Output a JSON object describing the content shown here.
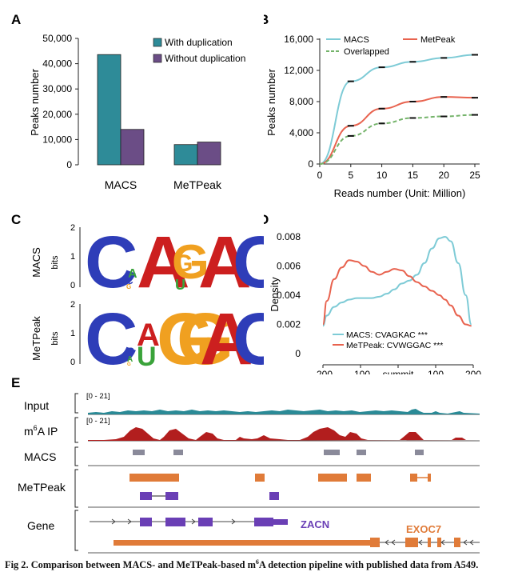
{
  "colors": {
    "macs": "#2e8b98",
    "without_dup": "#6b4d86",
    "line_macs": "#7ecbd6",
    "line_metpeak": "#e8634f",
    "line_overlapped": "#74b36a",
    "input_track": "#2a8a96",
    "ip_track": "#b21e1e",
    "macs_peak": "#8a8a9a",
    "metpeak_peak": "#e07b39",
    "metpeak_iso": "#6a3fb5",
    "zacn": "#6a3fb5",
    "exoc7": "#e07b39"
  },
  "panels": {
    "A": {
      "letter": "A"
    },
    "B": {
      "letter": "B"
    },
    "C": {
      "letter": "C"
    },
    "D": {
      "letter": "D"
    },
    "E": {
      "letter": "E"
    }
  },
  "chart_data": [
    {
      "panel": "A",
      "type": "bar",
      "ylabel": "Peaks number",
      "ylim": [
        0,
        50000
      ],
      "yticks": [
        "50,000",
        "40,000",
        "30,000",
        "20,000",
        "10,000",
        "0"
      ],
      "categories": [
        "MACS",
        "MeTPeak"
      ],
      "series": [
        {
          "name": "With duplication",
          "values": [
            43600,
            8000
          ]
        },
        {
          "name": "Without  duplication",
          "values": [
            14000,
            9000
          ]
        }
      ],
      "legend": "top-right"
    },
    {
      "panel": "B",
      "type": "line",
      "xlabel": "Reads number (Unit: Million)",
      "ylabel": "Peaks number",
      "ylim": [
        0,
        16000
      ],
      "xlim": [
        0,
        25
      ],
      "xticks": [
        "0",
        "5",
        "10",
        "15",
        "20",
        "25"
      ],
      "yticks": [
        "16,000",
        "12,000",
        "8,000",
        "4,000",
        "0"
      ],
      "x": [
        0,
        5,
        10,
        15,
        20,
        25
      ],
      "series": [
        {
          "name": "MACS",
          "values": [
            0,
            10600,
            12400,
            13100,
            13600,
            14000
          ]
        },
        {
          "name": "MetPeak",
          "values": [
            0,
            4900,
            7100,
            8000,
            8600,
            8500
          ]
        },
        {
          "name": "Overlapped",
          "values": [
            0,
            3600,
            5200,
            5900,
            6100,
            6300
          ]
        }
      ],
      "legend": "top"
    },
    {
      "panel": "D",
      "type": "line",
      "ylabel": "Density",
      "ylim": [
        0,
        0.008
      ],
      "yticks": [
        "0.008",
        "0.006",
        "0.004",
        "0.002",
        "0"
      ],
      "xticks": [
        "-200",
        "-100",
        "summit",
        "100",
        "200"
      ],
      "x": [
        -200,
        -190,
        -170,
        -150,
        -130,
        -110,
        -90,
        -70,
        -50,
        -30,
        -10,
        10,
        30,
        50,
        70,
        90,
        110,
        125,
        140,
        160,
        180,
        195
      ],
      "series": [
        {
          "name": "MACS: CVAGKAC ***",
          "values": [
            0.0019,
            0.0026,
            0.0032,
            0.0035,
            0.0037,
            0.0038,
            0.0038,
            0.0038,
            0.0039,
            0.0041,
            0.0044,
            0.0048,
            0.005,
            0.0054,
            0.0062,
            0.0072,
            0.0079,
            0.008,
            0.0077,
            0.0062,
            0.004,
            0.002
          ]
        },
        {
          "name": "MeTPeak: CVWGGAC ***",
          "values": [
            0.002,
            0.0036,
            0.0051,
            0.0059,
            0.0064,
            0.0063,
            0.006,
            0.0056,
            0.0054,
            0.0056,
            0.0058,
            0.0057,
            0.0053,
            0.0049,
            0.0046,
            0.0043,
            0.004,
            0.0037,
            0.0033,
            0.0026,
            0.002,
            0.0019
          ]
        }
      ],
      "legend": "bottom-center"
    }
  ],
  "panel_c": {
    "rows": [
      {
        "label": "MACS",
        "yaxis": "bits",
        "ticks": [
          "2",
          "1",
          "0"
        ]
      },
      {
        "label": "MeTPeak",
        "yaxis": "bits",
        "ticks": [
          "2",
          "1",
          "0"
        ]
      }
    ]
  },
  "panel_e": {
    "tracks": [
      {
        "label": "Input",
        "range": "[0 - 21]"
      },
      {
        "label": "m6A IP",
        "label_pre": "m",
        "label_sup": "6",
        "label_post": "A IP",
        "range": "[0 - 21]"
      },
      {
        "label": "MACS"
      },
      {
        "label": "MeTPeak"
      },
      {
        "label": "Gene"
      }
    ],
    "genes": [
      "ZACN",
      "EXOC7"
    ]
  },
  "caption": {
    "prefix": "Fig 2.  Comparison between MACS- and MeTPeak-based m",
    "sup": "6",
    "suffix": "A detection pipeline with published data from A549."
  }
}
